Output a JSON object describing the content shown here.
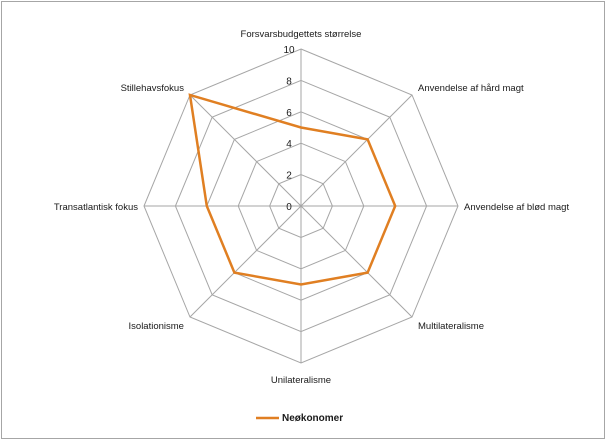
{
  "chart_data": {
    "type": "radar",
    "categories": [
      "Forsvarsbudgettets størrelse",
      "Anvendelse af hård magt",
      "Anvendelse af blød magt",
      "Multilateralisme",
      "Unilateralisme",
      "Isolationisme",
      "Transatlantisk fokus",
      "Stillehavsfokus"
    ],
    "series": [
      {
        "name": "Neøkonomer",
        "values": [
          5,
          6,
          6,
          6,
          5,
          6,
          6,
          10
        ],
        "color": "#e07f22"
      }
    ],
    "rlim": [
      0,
      10
    ],
    "ticks": [
      0,
      2,
      4,
      6,
      8,
      10
    ],
    "grid": true,
    "legend": "bottom"
  }
}
